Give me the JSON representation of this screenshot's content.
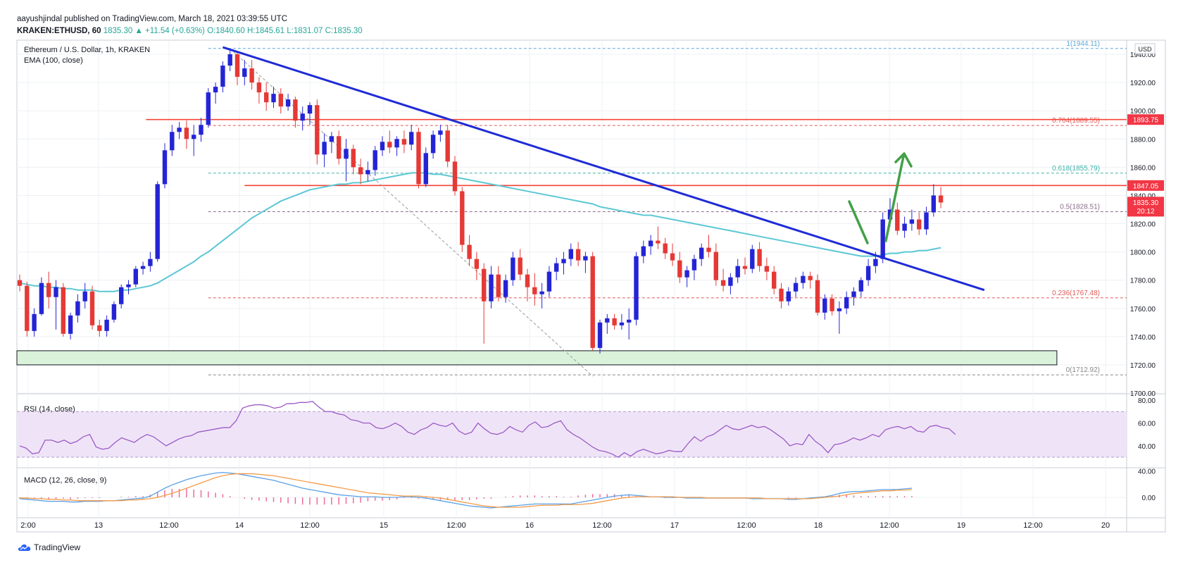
{
  "header": {
    "published": "aayushjindal published on TradingView.com, March 18, 2021 03:39:55 UTC",
    "symbol": "KRAKEN:ETHUSD, 60",
    "last": "1835.30",
    "change": "▲ +11.54 (+0.63%)",
    "ohlc": "O:1840.60 H:1845.61 L:1831.07 C:1835.30"
  },
  "legends": {
    "main": "Ethereum / U.S. Dollar, 1h, KRAKEN",
    "ema": "EMA (100, close)",
    "rsi": "RSI (14, close)",
    "macd": "MACD (12, 26, close, 9)"
  },
  "footer": {
    "brand": "TradingView"
  },
  "chart_data": {
    "type": "candlestick",
    "currency": "USD",
    "y_range": [
      1700,
      1950
    ],
    "y_ticks": [
      "1940.00",
      "1920.00",
      "1900.00",
      "1880.00",
      "1860.00",
      "1840.00",
      "1820.00",
      "1800.00",
      "1780.00",
      "1760.00",
      "1740.00",
      "1720.00",
      "1700.00"
    ],
    "x_ticks": [
      "2:00",
      "13",
      "12:00",
      "14",
      "12:00",
      "15",
      "12:00",
      "16",
      "12:00",
      "17",
      "12:00",
      "18",
      "12:00",
      "19",
      "12:00",
      "20"
    ],
    "colors": {
      "up": "#2424d6",
      "down": "#e53935",
      "ema": "#5bc8d4",
      "trendline": "#1f2bd6",
      "resistance": "#f44336",
      "support_zone_fill": "#d9f2d9",
      "rsi": "#9c5ac8",
      "macd": "#5aa0e6",
      "signal": "#f39c4a",
      "arrows": "#43a047"
    },
    "candles": [
      [
        1780,
        1784,
        1772,
        1776
      ],
      [
        1776,
        1779,
        1740,
        1744
      ],
      [
        1744,
        1760,
        1740,
        1756
      ],
      [
        1756,
        1782,
        1755,
        1778
      ],
      [
        1778,
        1786,
        1760,
        1768
      ],
      [
        1768,
        1780,
        1745,
        1775
      ],
      [
        1775,
        1778,
        1740,
        1742
      ],
      [
        1742,
        1757,
        1738,
        1755
      ],
      [
        1755,
        1770,
        1750,
        1765
      ],
      [
        1765,
        1778,
        1760,
        1772
      ],
      [
        1772,
        1776,
        1745,
        1748
      ],
      [
        1748,
        1752,
        1740,
        1744
      ],
      [
        1744,
        1755,
        1740,
        1752
      ],
      [
        1752,
        1765,
        1750,
        1763
      ],
      [
        1763,
        1777,
        1760,
        1775
      ],
      [
        1775,
        1780,
        1770,
        1777
      ],
      [
        1777,
        1790,
        1775,
        1788
      ],
      [
        1788,
        1793,
        1784,
        1790
      ],
      [
        1790,
        1800,
        1786,
        1795
      ],
      [
        1795,
        1850,
        1793,
        1848
      ],
      [
        1848,
        1877,
        1845,
        1872
      ],
      [
        1872,
        1890,
        1868,
        1885
      ],
      [
        1885,
        1892,
        1880,
        1888
      ],
      [
        1888,
        1893,
        1873,
        1880
      ],
      [
        1880,
        1890,
        1868,
        1883
      ],
      [
        1883,
        1895,
        1878,
        1890
      ],
      [
        1890,
        1916,
        1888,
        1913
      ],
      [
        1913,
        1920,
        1905,
        1917
      ],
      [
        1917,
        1935,
        1913,
        1932
      ],
      [
        1932,
        1944,
        1928,
        1940
      ],
      [
        1940,
        1942,
        1918,
        1924
      ],
      [
        1924,
        1936,
        1918,
        1930
      ],
      [
        1930,
        1936,
        1915,
        1920
      ],
      [
        1920,
        1924,
        1905,
        1913
      ],
      [
        1913,
        1920,
        1900,
        1906
      ],
      [
        1906,
        1917,
        1902,
        1912
      ],
      [
        1912,
        1916,
        1898,
        1903
      ],
      [
        1903,
        1912,
        1900,
        1908
      ],
      [
        1908,
        1910,
        1888,
        1893
      ],
      [
        1893,
        1903,
        1886,
        1898
      ],
      [
        1898,
        1906,
        1890,
        1904
      ],
      [
        1904,
        1908,
        1862,
        1869
      ],
      [
        1869,
        1884,
        1860,
        1878
      ],
      [
        1878,
        1885,
        1870,
        1882
      ],
      [
        1882,
        1886,
        1862,
        1866
      ],
      [
        1866,
        1880,
        1850,
        1873
      ],
      [
        1873,
        1876,
        1855,
        1860
      ],
      [
        1860,
        1866,
        1848,
        1855
      ],
      [
        1855,
        1864,
        1850,
        1858
      ],
      [
        1858,
        1875,
        1854,
        1872
      ],
      [
        1872,
        1882,
        1868,
        1878
      ],
      [
        1878,
        1886,
        1870,
        1874
      ],
      [
        1874,
        1882,
        1868,
        1880
      ],
      [
        1880,
        1886,
        1870,
        1876
      ],
      [
        1876,
        1890,
        1872,
        1885
      ],
      [
        1885,
        1888,
        1845,
        1848
      ],
      [
        1848,
        1874,
        1846,
        1870
      ],
      [
        1870,
        1886,
        1866,
        1883
      ],
      [
        1883,
        1890,
        1878,
        1886
      ],
      [
        1886,
        1890,
        1860,
        1864
      ],
      [
        1864,
        1868,
        1840,
        1843
      ],
      [
        1843,
        1846,
        1800,
        1805
      ],
      [
        1805,
        1812,
        1790,
        1795
      ],
      [
        1795,
        1800,
        1780,
        1788
      ],
      [
        1788,
        1792,
        1735,
        1765
      ],
      [
        1765,
        1790,
        1760,
        1784
      ],
      [
        1784,
        1790,
        1765,
        1768
      ],
      [
        1768,
        1784,
        1764,
        1780
      ],
      [
        1780,
        1800,
        1776,
        1796
      ],
      [
        1796,
        1802,
        1780,
        1784
      ],
      [
        1784,
        1788,
        1765,
        1775
      ],
      [
        1775,
        1785,
        1762,
        1770
      ],
      [
        1770,
        1778,
        1760,
        1772
      ],
      [
        1772,
        1790,
        1768,
        1786
      ],
      [
        1786,
        1796,
        1780,
        1792
      ],
      [
        1792,
        1800,
        1784,
        1795
      ],
      [
        1795,
        1806,
        1790,
        1802
      ],
      [
        1802,
        1807,
        1790,
        1794
      ],
      [
        1794,
        1800,
        1785,
        1797
      ],
      [
        1797,
        1800,
        1730,
        1732
      ],
      [
        1732,
        1752,
        1728,
        1750
      ],
      [
        1750,
        1756,
        1742,
        1753
      ],
      [
        1753,
        1756,
        1745,
        1748
      ],
      [
        1748,
        1756,
        1745,
        1750
      ],
      [
        1750,
        1760,
        1738,
        1752
      ],
      [
        1752,
        1800,
        1748,
        1797
      ],
      [
        1797,
        1808,
        1792,
        1804
      ],
      [
        1804,
        1812,
        1798,
        1808
      ],
      [
        1808,
        1818,
        1802,
        1806
      ],
      [
        1806,
        1810,
        1795,
        1799
      ],
      [
        1799,
        1806,
        1790,
        1794
      ],
      [
        1794,
        1800,
        1778,
        1782
      ],
      [
        1782,
        1790,
        1775,
        1787
      ],
      [
        1787,
        1798,
        1780,
        1795
      ],
      [
        1795,
        1806,
        1790,
        1803
      ],
      [
        1803,
        1812,
        1796,
        1800
      ],
      [
        1800,
        1806,
        1776,
        1780
      ],
      [
        1780,
        1788,
        1772,
        1776
      ],
      [
        1776,
        1785,
        1770,
        1782
      ],
      [
        1782,
        1795,
        1778,
        1790
      ],
      [
        1790,
        1796,
        1784,
        1788
      ],
      [
        1788,
        1805,
        1785,
        1802
      ],
      [
        1802,
        1807,
        1786,
        1790
      ],
      [
        1790,
        1796,
        1780,
        1786
      ],
      [
        1786,
        1790,
        1770,
        1774
      ],
      [
        1774,
        1778,
        1760,
        1765
      ],
      [
        1765,
        1775,
        1762,
        1772
      ],
      [
        1772,
        1782,
        1768,
        1778
      ],
      [
        1778,
        1786,
        1774,
        1783
      ],
      [
        1783,
        1786,
        1774,
        1780
      ],
      [
        1780,
        1784,
        1755,
        1757
      ],
      [
        1757,
        1770,
        1752,
        1767
      ],
      [
        1767,
        1770,
        1755,
        1758
      ],
      [
        1758,
        1765,
        1742,
        1760
      ],
      [
        1760,
        1772,
        1756,
        1768
      ],
      [
        1768,
        1775,
        1762,
        1772
      ],
      [
        1772,
        1782,
        1768,
        1780
      ],
      [
        1780,
        1795,
        1776,
        1790
      ],
      [
        1790,
        1800,
        1785,
        1795
      ],
      [
        1795,
        1828,
        1792,
        1823
      ],
      [
        1823,
        1838,
        1818,
        1830
      ],
      [
        1830,
        1835,
        1812,
        1815
      ],
      [
        1815,
        1825,
        1810,
        1820
      ],
      [
        1820,
        1830,
        1815,
        1823
      ],
      [
        1823,
        1828,
        1812,
        1816
      ],
      [
        1816,
        1832,
        1812,
        1828
      ],
      [
        1828,
        1848,
        1825,
        1840
      ],
      [
        1840,
        1846,
        1831,
        1835
      ]
    ],
    "ema_100": [
      1778,
      1777,
      1776,
      1776,
      1775,
      1775,
      1774,
      1774,
      1773,
      1773,
      1773,
      1772,
      1772,
      1772,
      1773,
      1773,
      1774,
      1775,
      1776,
      1778,
      1781,
      1784,
      1787,
      1790,
      1793,
      1797,
      1800,
      1804,
      1808,
      1812,
      1816,
      1820,
      1824,
      1827,
      1830,
      1833,
      1836,
      1838,
      1840,
      1842,
      1844,
      1845,
      1846,
      1847,
      1848,
      1848,
      1849,
      1849,
      1850,
      1851,
      1852,
      1853,
      1854,
      1855,
      1856,
      1856,
      1856,
      1855,
      1855,
      1854,
      1853,
      1852,
      1851,
      1850,
      1849,
      1848,
      1847,
      1846,
      1845,
      1844,
      1843,
      1842,
      1841,
      1840,
      1839,
      1838,
      1837,
      1836,
      1835,
      1834,
      1832,
      1831,
      1830,
      1829,
      1828,
      1827,
      1826,
      1826,
      1825,
      1824,
      1823,
      1822,
      1821,
      1820,
      1819,
      1818,
      1817,
      1816,
      1815,
      1814,
      1813,
      1812,
      1811,
      1810,
      1809,
      1808,
      1807,
      1806,
      1805,
      1804,
      1803,
      1802,
      1801,
      1800,
      1799,
      1798,
      1797,
      1797,
      1797,
      1798,
      1799,
      1799,
      1800,
      1800,
      1801,
      1801,
      1802,
      1803
    ],
    "trendline": {
      "start": [
        28,
        1945
      ],
      "end": [
        133,
        1773
      ]
    },
    "resistance_levels": [
      {
        "label": "1893.75",
        "price": 1893.75,
        "from_index": 18
      },
      {
        "label": "1847.05",
        "price": 1847.05,
        "from_index": 31
      }
    ],
    "support_zone": {
      "low": 1720,
      "high": 1730,
      "to_index": 143
    },
    "fibonacci": [
      {
        "label": "1(1944.11)",
        "price": 1944.11
      },
      {
        "label": "0.764(1889.55)",
        "price": 1889.55
      },
      {
        "label": "0.618(1855.79)",
        "price": 1855.79
      },
      {
        "label": "0.5(1828.51)",
        "price": 1828.51
      },
      {
        "label": "0.236(1767.48)",
        "price": 1767.48
      },
      {
        "label": "0(1712.92)",
        "price": 1712.92
      }
    ],
    "price_tags": [
      {
        "label": "1893.75",
        "price": 1893.75
      },
      {
        "label": "1847.05",
        "price": 1847.05
      },
      {
        "label": "1835.30",
        "price": 1835.3
      }
    ],
    "countdown": "20:12",
    "rsi": {
      "y_ticks": [
        "80.00",
        "60.00",
        "40.00"
      ],
      "values": [
        40,
        38,
        33,
        34,
        45,
        45,
        43,
        45,
        42,
        44,
        48,
        50,
        39,
        37,
        38,
        43,
        47,
        45,
        43,
        47,
        50,
        48,
        44,
        40,
        43,
        46,
        48,
        49,
        52,
        53,
        54,
        55,
        56,
        56,
        62,
        73,
        75,
        76,
        76,
        75,
        73,
        74,
        77,
        77,
        78,
        78,
        79,
        74,
        70,
        70,
        68,
        67,
        63,
        62,
        60,
        60,
        56,
        55,
        57,
        60,
        57,
        52,
        50,
        54,
        56,
        60,
        58,
        57,
        60,
        53,
        50,
        52,
        60,
        55,
        51,
        50,
        52,
        57,
        54,
        52,
        58,
        61,
        56,
        57,
        60,
        62,
        54,
        50,
        47,
        43,
        39,
        36,
        35,
        33,
        30,
        34,
        31,
        35,
        37,
        35,
        33,
        34,
        36,
        35,
        35,
        42,
        48,
        44,
        48,
        50,
        54,
        58,
        55,
        54,
        56,
        58,
        56,
        57,
        54,
        50,
        46,
        40,
        42,
        41,
        50,
        44,
        40,
        34,
        41,
        42,
        44,
        47,
        45,
        47,
        50,
        48,
        54,
        56,
        57,
        55,
        57,
        53,
        52,
        57,
        58,
        56,
        55,
        50
      ],
      "band": [
        30,
        70
      ]
    },
    "macd": {
      "y_ticks": [
        "40.00",
        "0.00"
      ],
      "macd_line": [
        -2,
        -3,
        -4,
        -5,
        -6,
        -6,
        -6,
        -7,
        -7,
        -6,
        -6,
        -6,
        -5,
        -5,
        -4,
        -3,
        -2,
        -1,
        2,
        8,
        14,
        19,
        23,
        27,
        30,
        33,
        35,
        37,
        38,
        37,
        36,
        34,
        32,
        30,
        28,
        26,
        23,
        20,
        17,
        14,
        12,
        10,
        8,
        6,
        4,
        3,
        2,
        1,
        1,
        1,
        0,
        0,
        0,
        1,
        1,
        0,
        -1,
        -3,
        -5,
        -7,
        -9,
        -11,
        -13,
        -14,
        -15,
        -16,
        -15,
        -14,
        -13,
        -12,
        -11,
        -10,
        -10,
        -10,
        -10,
        -10,
        -10,
        -8,
        -6,
        -4,
        -2,
        0,
        2,
        3,
        4,
        3,
        2,
        1,
        1,
        0,
        0,
        0,
        -1,
        -1,
        -1,
        -1,
        -1,
        -1,
        -1,
        -1,
        -1,
        -2,
        -2,
        -2,
        -2,
        -2,
        -3,
        -3,
        -2,
        -1,
        0,
        1,
        3,
        6,
        8,
        9,
        9,
        10,
        11,
        12,
        12,
        12,
        13,
        14
      ],
      "signal_line": [
        -1,
        -1,
        -2,
        -2,
        -3,
        -3,
        -4,
        -4,
        -5,
        -5,
        -5,
        -5,
        -5,
        -5,
        -5,
        -4,
        -4,
        -3,
        -2,
        0,
        3,
        6,
        10,
        14,
        18,
        22,
        26,
        30,
        33,
        35,
        36,
        36,
        36,
        35,
        34,
        33,
        31,
        29,
        27,
        25,
        23,
        21,
        19,
        17,
        15,
        13,
        11,
        9,
        7,
        6,
        5,
        4,
        3,
        2,
        2,
        2,
        1,
        0,
        -1,
        -3,
        -5,
        -7,
        -9,
        -11,
        -13,
        -14,
        -15,
        -15,
        -15,
        -15,
        -14,
        -13,
        -12,
        -12,
        -12,
        -11,
        -11,
        -11,
        -10,
        -9,
        -7,
        -5,
        -3,
        -1,
        0,
        1,
        1,
        1,
        1,
        1,
        1,
        0,
        0,
        0,
        0,
        -1,
        -1,
        -1,
        -1,
        -1,
        -1,
        -1,
        -1,
        -2,
        -2,
        -2,
        -2,
        -2,
        -2,
        -2,
        -1,
        0,
        1,
        2,
        4,
        6,
        7,
        8,
        9,
        10,
        10,
        11,
        11,
        12
      ],
      "histogram": [
        -2,
        -2,
        -2,
        -3,
        -3,
        -3,
        -2,
        -3,
        -2,
        -1,
        -1,
        -1,
        0,
        0,
        1,
        1,
        2,
        2,
        4,
        8,
        11,
        13,
        13,
        13,
        12,
        11,
        9,
        7,
        5,
        2,
        0,
        -2,
        -4,
        -5,
        -6,
        -7,
        -8,
        -9,
        -10,
        -11,
        -11,
        -11,
        -11,
        -11,
        -11,
        -10,
        -9,
        -8,
        -6,
        -5,
        -5,
        -4,
        -3,
        -1,
        -1,
        -2,
        -2,
        -3,
        -4,
        -4,
        -4,
        -4,
        -4,
        -3,
        -2,
        -2,
        0,
        1,
        2,
        3,
        3,
        3,
        2,
        2,
        2,
        1,
        1,
        3,
        4,
        5,
        5,
        5,
        5,
        4,
        4,
        2,
        1,
        0,
        0,
        -1,
        -1,
        0,
        -1,
        -1,
        -1,
        0,
        0,
        0,
        0,
        0,
        0,
        -1,
        0,
        0,
        0,
        0,
        -1,
        -1,
        0,
        0,
        0,
        1,
        2,
        4,
        4,
        3,
        2,
        2,
        2,
        2,
        2,
        2,
        2,
        2
      ]
    }
  }
}
